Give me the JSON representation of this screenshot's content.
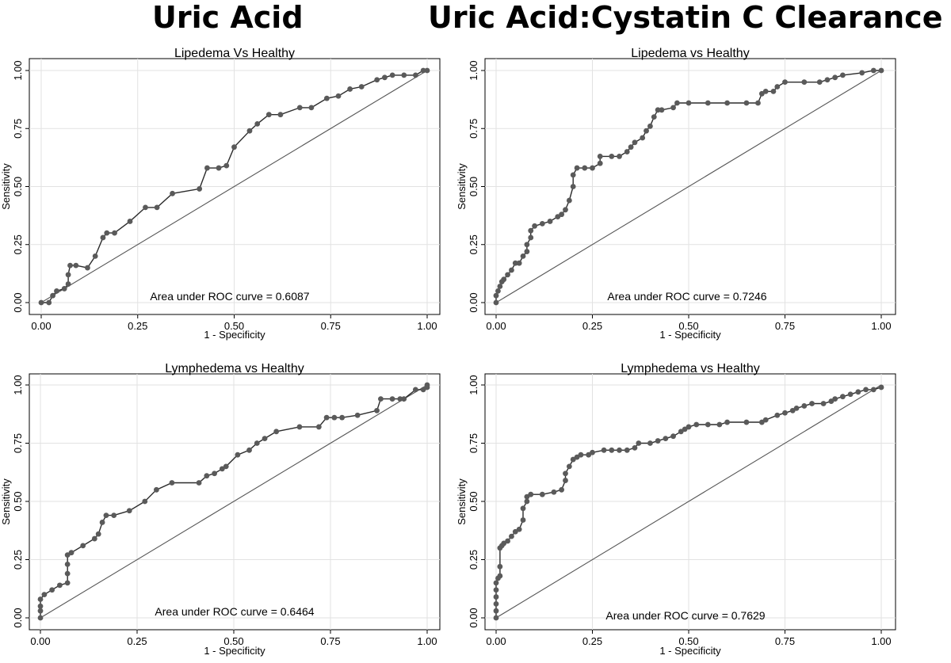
{
  "headlines": {
    "left": "Uric Acid",
    "right": "Uric Acid:Cystatin C Clearance"
  },
  "colors": {
    "marker": "#5a5a5a",
    "curve_line": "#2b2b2b",
    "diagonal": "#555555",
    "grid": "#e2e2e2",
    "frame": "#000000"
  },
  "chart_data": [
    {
      "type": "line",
      "title": "Lipedema Vs Healthy",
      "xlabel": "1 - Specificity",
      "ylabel": "Sensitivity",
      "xlim": [
        0,
        1
      ],
      "ylim": [
        0,
        1
      ],
      "xticks": [
        "0.00",
        "0.25",
        "0.50",
        "0.75",
        "1.00"
      ],
      "yticks": [
        "0.00",
        "0.25",
        "0.50",
        "0.75",
        "1.00"
      ],
      "grid": true,
      "reference_line": [
        [
          0,
          0
        ],
        [
          1,
          1
        ]
      ],
      "annotation": "Area under ROC curve = 0.6087",
      "x": [
        0,
        0.02,
        0.03,
        0.04,
        0.06,
        0.07,
        0.07,
        0.075,
        0.09,
        0.12,
        0.14,
        0.16,
        0.17,
        0.19,
        0.23,
        0.27,
        0.3,
        0.34,
        0.41,
        0.43,
        0.46,
        0.48,
        0.5,
        0.54,
        0.56,
        0.59,
        0.62,
        0.67,
        0.7,
        0.74,
        0.77,
        0.8,
        0.83,
        0.87,
        0.89,
        0.91,
        0.94,
        0.97,
        0.99,
        1.0
      ],
      "y": [
        0,
        0,
        0.03,
        0.05,
        0.06,
        0.08,
        0.12,
        0.16,
        0.16,
        0.15,
        0.2,
        0.28,
        0.3,
        0.3,
        0.35,
        0.41,
        0.41,
        0.47,
        0.49,
        0.58,
        0.58,
        0.59,
        0.67,
        0.74,
        0.77,
        0.81,
        0.81,
        0.84,
        0.84,
        0.88,
        0.89,
        0.92,
        0.93,
        0.96,
        0.97,
        0.98,
        0.98,
        0.98,
        1.0,
        1.0
      ]
    },
    {
      "type": "line",
      "title": "Lipedema vs Healthy",
      "xlabel": "1 - Specificity",
      "ylabel": "Sensitivity",
      "xlim": [
        0,
        1
      ],
      "ylim": [
        0,
        1
      ],
      "xticks": [
        "0.00",
        "0.25",
        "0.50",
        "0.75",
        "1.00"
      ],
      "yticks": [
        "0.00",
        "0.25",
        "0.50",
        "0.75",
        "1.00"
      ],
      "grid": true,
      "reference_line": [
        [
          0,
          0
        ],
        [
          1,
          1
        ]
      ],
      "annotation": "Area under ROC curve = 0.7246",
      "x": [
        0,
        0,
        0.005,
        0.01,
        0.015,
        0.02,
        0.03,
        0.04,
        0.05,
        0.06,
        0.07,
        0.08,
        0.08,
        0.09,
        0.09,
        0.1,
        0.12,
        0.14,
        0.16,
        0.17,
        0.18,
        0.19,
        0.2,
        0.2,
        0.21,
        0.23,
        0.25,
        0.27,
        0.27,
        0.3,
        0.32,
        0.34,
        0.35,
        0.36,
        0.38,
        0.39,
        0.4,
        0.41,
        0.42,
        0.43,
        0.46,
        0.47,
        0.5,
        0.55,
        0.6,
        0.65,
        0.68,
        0.69,
        0.7,
        0.72,
        0.73,
        0.75,
        0.8,
        0.84,
        0.86,
        0.88,
        0.9,
        0.95,
        0.98,
        1.0
      ],
      "y": [
        0,
        0.03,
        0.05,
        0.07,
        0.09,
        0.1,
        0.12,
        0.14,
        0.17,
        0.17,
        0.2,
        0.22,
        0.25,
        0.28,
        0.31,
        0.33,
        0.34,
        0.35,
        0.37,
        0.38,
        0.4,
        0.44,
        0.5,
        0.55,
        0.58,
        0.58,
        0.58,
        0.6,
        0.63,
        0.63,
        0.63,
        0.65,
        0.67,
        0.69,
        0.71,
        0.74,
        0.76,
        0.8,
        0.83,
        0.83,
        0.84,
        0.86,
        0.86,
        0.86,
        0.86,
        0.86,
        0.86,
        0.9,
        0.91,
        0.91,
        0.93,
        0.95,
        0.95,
        0.95,
        0.96,
        0.97,
        0.98,
        0.99,
        1.0,
        1.0
      ]
    },
    {
      "type": "line",
      "title": "Lymphedema vs Healthy",
      "xlabel": "1 - Specificity",
      "ylabel": "Sensitivity",
      "xlim": [
        0,
        1
      ],
      "ylim": [
        0,
        1
      ],
      "xticks": [
        "0.00",
        "0.25",
        "0.50",
        "0.75",
        "1.00"
      ],
      "yticks": [
        "0.00",
        "0.25",
        "0.50",
        "0.75",
        "1.00"
      ],
      "grid": true,
      "reference_line": [
        [
          0,
          0
        ],
        [
          1,
          1
        ]
      ],
      "annotation": "Area under ROC curve = 0.6464",
      "x": [
        0,
        0,
        0,
        0,
        0.01,
        0.03,
        0.05,
        0.07,
        0.07,
        0.07,
        0.07,
        0.08,
        0.11,
        0.14,
        0.15,
        0.16,
        0.17,
        0.19,
        0.23,
        0.27,
        0.3,
        0.34,
        0.41,
        0.43,
        0.45,
        0.47,
        0.48,
        0.51,
        0.54,
        0.56,
        0.58,
        0.61,
        0.67,
        0.72,
        0.74,
        0.76,
        0.78,
        0.82,
        0.87,
        0.88,
        0.91,
        0.93,
        0.94,
        0.97,
        0.99,
        1.0,
        1.0
      ],
      "y": [
        0,
        0.03,
        0.05,
        0.08,
        0.1,
        0.12,
        0.14,
        0.15,
        0.19,
        0.23,
        0.27,
        0.28,
        0.31,
        0.34,
        0.36,
        0.41,
        0.44,
        0.44,
        0.46,
        0.5,
        0.55,
        0.58,
        0.58,
        0.61,
        0.62,
        0.64,
        0.65,
        0.7,
        0.72,
        0.75,
        0.77,
        0.8,
        0.82,
        0.82,
        0.86,
        0.86,
        0.86,
        0.87,
        0.89,
        0.94,
        0.94,
        0.94,
        0.94,
        0.98,
        0.98,
        0.99,
        1.0
      ]
    },
    {
      "type": "line",
      "title": "Lymphedema vs Healthy",
      "xlabel": "1 - Specificity",
      "ylabel": "Sensitivity",
      "xlim": [
        0,
        1
      ],
      "ylim": [
        0,
        1
      ],
      "xticks": [
        "0.00",
        "0.25",
        "0.50",
        "0.75",
        "1.00"
      ],
      "yticks": [
        "0.00",
        "0.25",
        "0.50",
        "0.75",
        "1.00"
      ],
      "grid": true,
      "reference_line": [
        [
          0,
          0
        ],
        [
          1,
          1
        ]
      ],
      "annotation": "Area under ROC curve = 0.7629",
      "x": [
        0,
        0,
        0,
        0,
        0,
        0,
        0.005,
        0.01,
        0.01,
        0.01,
        0.015,
        0.02,
        0.03,
        0.04,
        0.05,
        0.06,
        0.07,
        0.07,
        0.08,
        0.08,
        0.09,
        0.12,
        0.15,
        0.17,
        0.18,
        0.18,
        0.19,
        0.2,
        0.21,
        0.22,
        0.24,
        0.25,
        0.28,
        0.3,
        0.32,
        0.34,
        0.36,
        0.37,
        0.4,
        0.42,
        0.44,
        0.46,
        0.48,
        0.49,
        0.5,
        0.52,
        0.55,
        0.58,
        0.6,
        0.65,
        0.69,
        0.7,
        0.73,
        0.75,
        0.77,
        0.78,
        0.8,
        0.82,
        0.85,
        0.87,
        0.88,
        0.9,
        0.92,
        0.94,
        0.96,
        0.98,
        1.0
      ],
      "y": [
        0,
        0.03,
        0.06,
        0.09,
        0.12,
        0.15,
        0.17,
        0.18,
        0.22,
        0.3,
        0.31,
        0.32,
        0.33,
        0.35,
        0.37,
        0.38,
        0.42,
        0.47,
        0.5,
        0.52,
        0.53,
        0.53,
        0.54,
        0.55,
        0.59,
        0.62,
        0.65,
        0.68,
        0.69,
        0.7,
        0.7,
        0.71,
        0.72,
        0.72,
        0.72,
        0.72,
        0.73,
        0.75,
        0.75,
        0.76,
        0.77,
        0.78,
        0.8,
        0.81,
        0.82,
        0.83,
        0.83,
        0.83,
        0.84,
        0.84,
        0.84,
        0.85,
        0.87,
        0.88,
        0.89,
        0.9,
        0.91,
        0.92,
        0.92,
        0.93,
        0.94,
        0.95,
        0.96,
        0.97,
        0.98,
        0.98,
        0.99
      ]
    }
  ]
}
